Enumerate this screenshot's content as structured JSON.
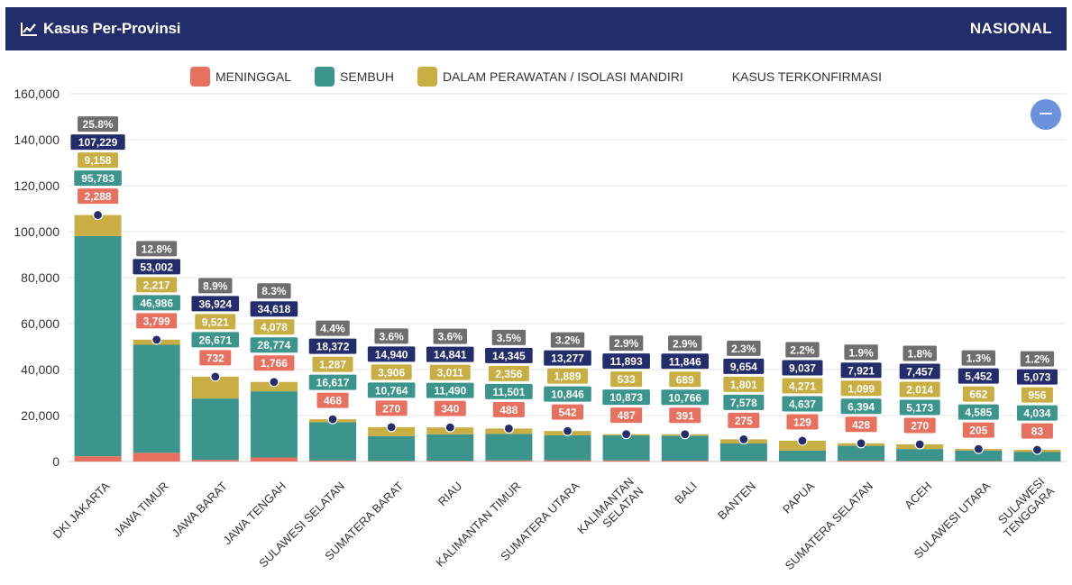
{
  "header": {
    "title": "Kasus Per-Provinsi",
    "scope": "NASIONAL",
    "icon": "line-chart-icon"
  },
  "legend": [
    {
      "label": "MENINGGAL",
      "color": "#e8705e"
    },
    {
      "label": "SEMBUH",
      "color": "#3b958c"
    },
    {
      "label": "DALAM PERAWATAN / ISOLASI MANDIRI",
      "color": "#c9ae44"
    },
    {
      "label": "KASUS TERKONFIRMASI",
      "color": ""
    }
  ],
  "zoom_button": {
    "label": "−",
    "icon": "zoom-out-icon"
  },
  "chart_data": {
    "type": "bar",
    "stacked": true,
    "title": "",
    "xlabel": "",
    "ylabel": "",
    "ylim": [
      0,
      160000
    ],
    "yticks": [
      "0",
      "20,000",
      "40,000",
      "60,000",
      "80,000",
      "100,000",
      "120,000",
      "140,000",
      "160,000"
    ],
    "grid": true,
    "legend_position": "top-center",
    "categories": [
      "DKI JAKARTA",
      "JAWA TIMUR",
      "JAWA BARAT",
      "JAWA TENGAH",
      "SULAWESI SELATAN",
      "SUMATERA BARAT",
      "RIAU",
      "KALIMANTAN TIMUR",
      "SUMATERA UTARA",
      "KALIMANTAN SELATAN",
      "BALI",
      "BANTEN",
      "PAPUA",
      "SUMATERA SELATAN",
      "ACEH",
      "SULAWESI UTARA",
      "SULAWESI TENGGARA"
    ],
    "series": [
      {
        "name": "MENINGGAL",
        "color": "#e8705e",
        "values": [
          2288,
          3799,
          732,
          1766,
          468,
          270,
          340,
          488,
          542,
          487,
          391,
          275,
          129,
          428,
          270,
          205,
          83
        ]
      },
      {
        "name": "SEMBUH",
        "color": "#3b958c",
        "values": [
          95783,
          46986,
          26671,
          28774,
          16617,
          10764,
          11490,
          11501,
          10846,
          10873,
          10766,
          7578,
          4637,
          6394,
          5173,
          4585,
          4034
        ]
      },
      {
        "name": "DALAM PERAWATAN / ISOLASI MANDIRI",
        "color": "#c9ae44",
        "values": [
          9158,
          2217,
          9521,
          4078,
          1287,
          3906,
          3011,
          2356,
          1889,
          533,
          689,
          1801,
          4271,
          1099,
          2014,
          662,
          956
        ]
      }
    ],
    "confirmed": {
      "name": "KASUS TERKONFIRMASI",
      "color": "#232d6b",
      "values": [
        107229,
        53002,
        36924,
        34618,
        18372,
        14940,
        14841,
        14345,
        13277,
        11893,
        11846,
        9654,
        9037,
        7921,
        7457,
        5452,
        5073
      ]
    },
    "percent_share": {
      "color": "#6e6e6e",
      "values": [
        "25.8%",
        "12.8%",
        "8.9%",
        "8.3%",
        "4.4%",
        "3.6%",
        "3.6%",
        "3.5%",
        "3.2%",
        "2.9%",
        "2.9%",
        "2.3%",
        "2.2%",
        "1.9%",
        "1.8%",
        "1.3%",
        "1.2%"
      ]
    }
  }
}
